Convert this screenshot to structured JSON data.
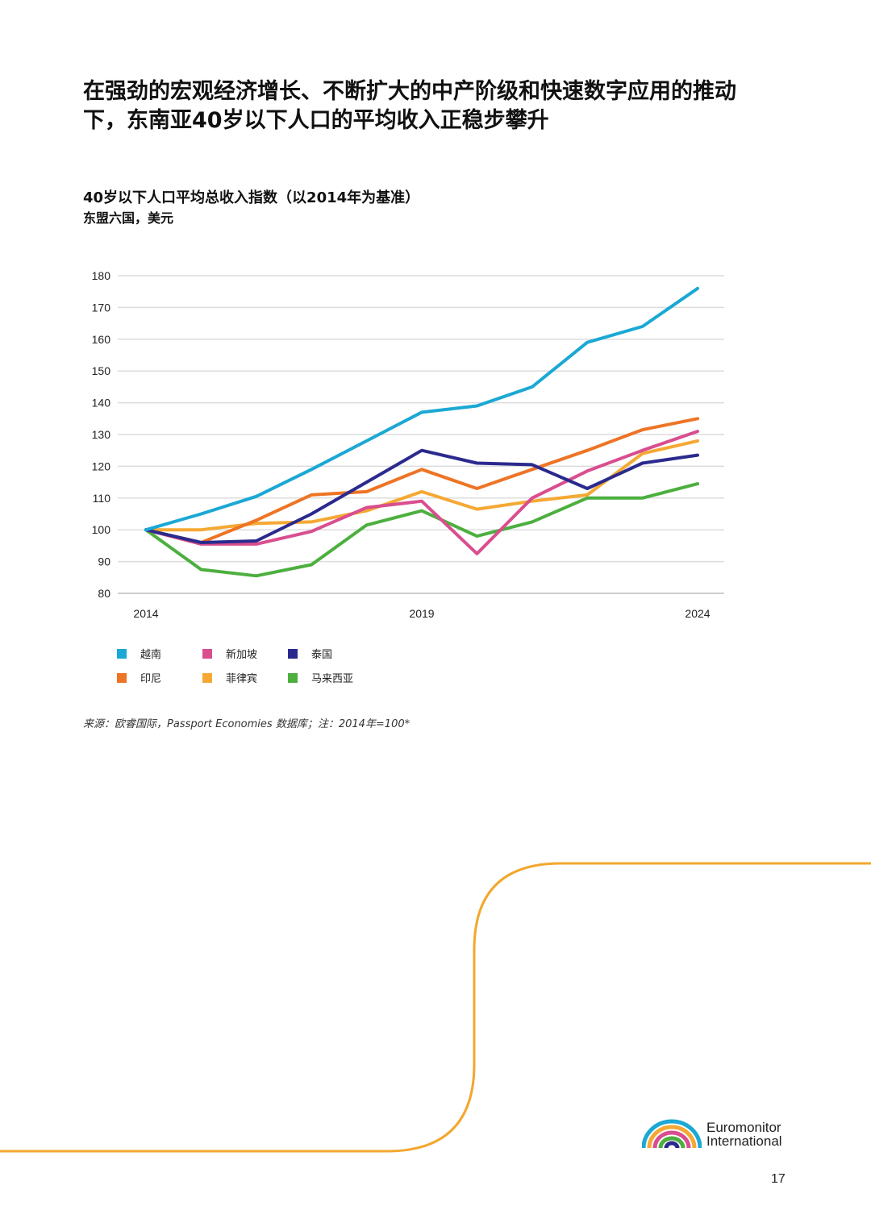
{
  "page": {
    "headline": "在强劲的宏观经济增长、不断扩大的中产阶级和快速数字应用的推动下，东南亚40岁以下人口的平均收入正稳步攀升",
    "source_note": "来源：欧睿国际，Passport Economies 数据库；注：2014年=100*",
    "page_number": "17",
    "brand_line1": "Euromonitor",
    "brand_line2": "International",
    "decor_color": "#F2A72E"
  },
  "chart_data": {
    "type": "line",
    "title": "40岁以下人口平均总收入指数（以2014年为基准）",
    "subtitle": "东盟六国，美元",
    "xlabel": "",
    "ylabel": "",
    "x": [
      2014,
      2015,
      2016,
      2017,
      2018,
      2019,
      2020,
      2021,
      2022,
      2023,
      2024
    ],
    "x_tick_labels": [
      "2014",
      "2019",
      "2024"
    ],
    "x_tick_values": [
      2014,
      2019,
      2024
    ],
    "ylim": [
      80,
      180
    ],
    "y_ticks": [
      80,
      90,
      100,
      110,
      120,
      130,
      140,
      150,
      160,
      170,
      180
    ],
    "grid": true,
    "legend_position": "bottom",
    "series": [
      {
        "name": "越南",
        "color": "#1BA8D4",
        "values": [
          100,
          105,
          110.5,
          119,
          128,
          137,
          139,
          145,
          159,
          164,
          176
        ]
      },
      {
        "name": "新加坡",
        "color": "#D94E8F",
        "values": [
          100,
          95.5,
          95.5,
          99.5,
          107,
          109,
          92.5,
          110,
          118.5,
          125,
          131
        ]
      },
      {
        "name": "泰国",
        "color": "#2A2A8E",
        "values": [
          100,
          96,
          96.5,
          105,
          115,
          125,
          121,
          120.5,
          113,
          121,
          123.5
        ]
      },
      {
        "name": "印尼",
        "color": "#EE7425",
        "values": [
          100,
          96,
          103,
          111,
          112,
          119,
          113,
          119,
          125,
          131.5,
          135
        ]
      },
      {
        "name": "菲律宾",
        "color": "#F5A833",
        "values": [
          100,
          100,
          102,
          102.5,
          106,
          112,
          106.5,
          109,
          111,
          124,
          128
        ]
      },
      {
        "name": "马来西亚",
        "color": "#4CAF3E",
        "values": [
          100,
          87.5,
          85.5,
          89,
          101.5,
          106,
          98,
          102.5,
          110,
          110,
          114.5
        ]
      }
    ]
  }
}
